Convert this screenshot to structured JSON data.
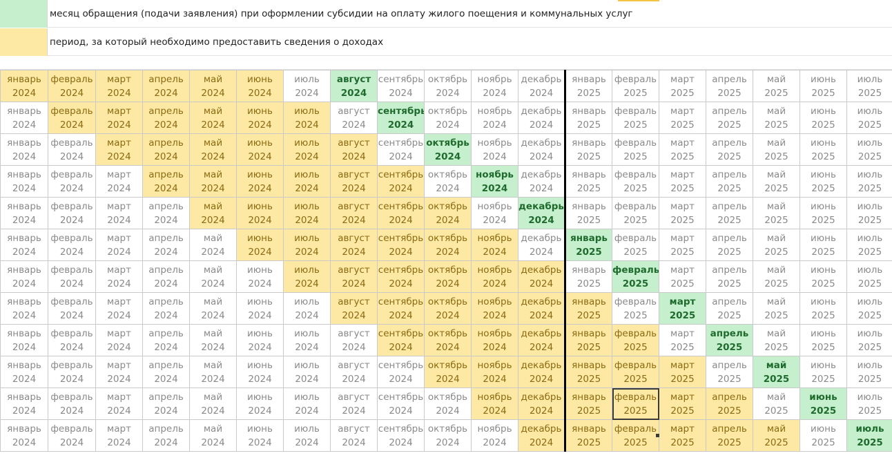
{
  "legend": [
    {
      "text": "месяц обращения (подачи заявления) при оформлении субсидии на оплату жилого поещения и коммунальных услуг",
      "color": "#c6efce"
    },
    {
      "text": "период, за который необходимо предоставить сведения о доходах",
      "color": "#fde9a3"
    }
  ],
  "months": [
    {
      "m": "январь",
      "y": "2024"
    },
    {
      "m": "февраль",
      "y": "2024"
    },
    {
      "m": "март",
      "y": "2024"
    },
    {
      "m": "апрель",
      "y": "2024"
    },
    {
      "m": "май",
      "y": "2024"
    },
    {
      "m": "июнь",
      "y": "2024"
    },
    {
      "m": "июль",
      "y": "2024"
    },
    {
      "m": "август",
      "y": "2024"
    },
    {
      "m": "сентябрь",
      "y": "2024"
    },
    {
      "m": "октябрь",
      "y": "2024"
    },
    {
      "m": "ноябрь",
      "y": "2024"
    },
    {
      "m": "декабрь",
      "y": "2024"
    },
    {
      "m": "январь",
      "y": "2025"
    },
    {
      "m": "февраль",
      "y": "2025"
    },
    {
      "m": "март",
      "y": "2025"
    },
    {
      "m": "апрель",
      "y": "2025"
    },
    {
      "m": "май",
      "y": "2025"
    },
    {
      "m": "июнь",
      "y": "2025"
    },
    {
      "m": "июль",
      "y": "2025"
    }
  ],
  "rows": [
    {
      "period_start": 0,
      "period_end": 5,
      "apply": 7
    },
    {
      "period_start": 1,
      "period_end": 6,
      "apply": 8
    },
    {
      "period_start": 2,
      "period_end": 7,
      "apply": 9
    },
    {
      "period_start": 3,
      "period_end": 8,
      "apply": 10
    },
    {
      "period_start": 4,
      "period_end": 9,
      "apply": 11
    },
    {
      "period_start": 5,
      "period_end": 10,
      "apply": 12
    },
    {
      "period_start": 6,
      "period_end": 11,
      "apply": 13
    },
    {
      "period_start": 7,
      "period_end": 12,
      "apply": 14
    },
    {
      "period_start": 8,
      "period_end": 13,
      "apply": 15
    },
    {
      "period_start": 9,
      "period_end": 14,
      "apply": 16
    },
    {
      "period_start": 10,
      "period_end": 15,
      "apply": 17
    },
    {
      "period_start": 11,
      "period_end": 16,
      "apply": 18
    }
  ],
  "selected_cell": {
    "row": 10,
    "col": 13
  },
  "year_divider_col": 12
}
